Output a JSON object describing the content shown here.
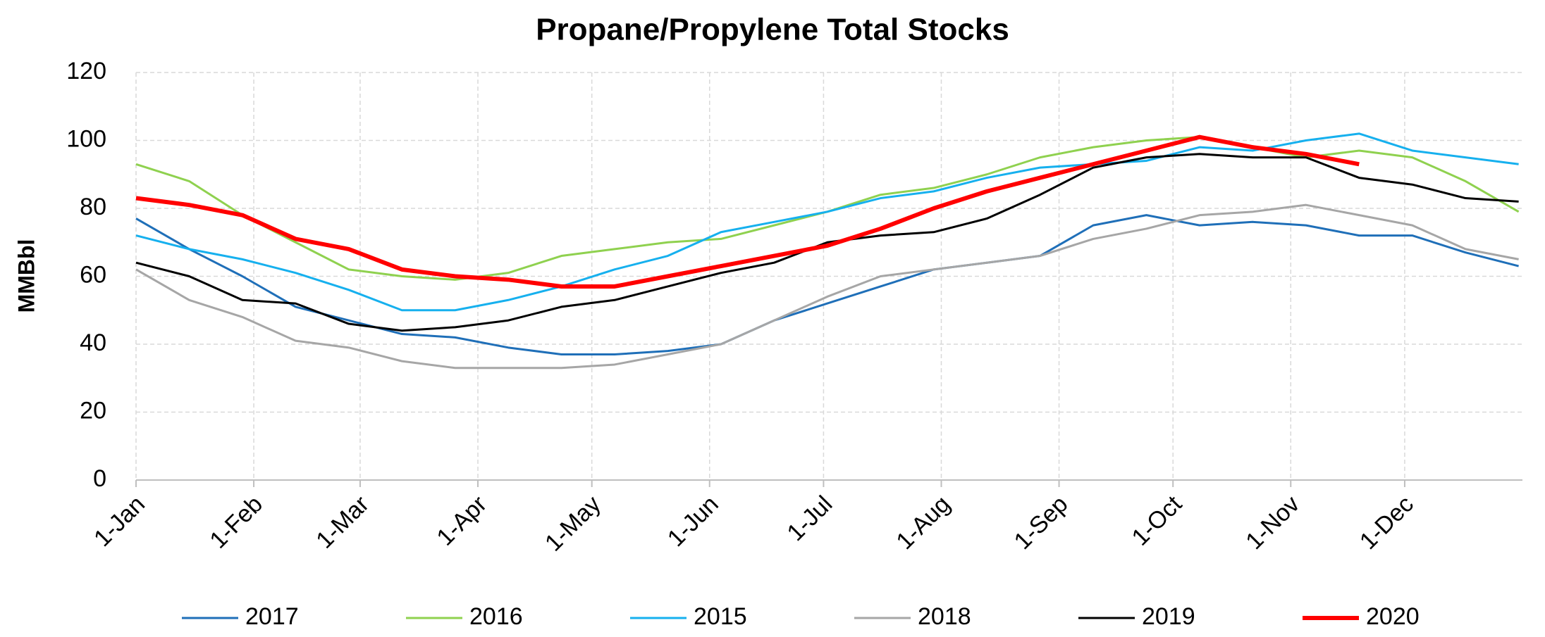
{
  "chart_data": {
    "type": "line",
    "title": "Propane/Propylene Total Stocks",
    "y_label": "MMBbl",
    "x": [
      0,
      14,
      28,
      42,
      56,
      70,
      84,
      98,
      112,
      126,
      140,
      154,
      168,
      182,
      196,
      210,
      224,
      238,
      252,
      266,
      280,
      294,
      308,
      322,
      336,
      350,
      364
    ],
    "xlim": [
      0,
      365
    ],
    "xticks": [
      {
        "value": 0,
        "label": "1-Jan"
      },
      {
        "value": 31,
        "label": "1-Feb"
      },
      {
        "value": 59,
        "label": "1-Mar"
      },
      {
        "value": 90,
        "label": "1-Apr"
      },
      {
        "value": 120,
        "label": "1-May"
      },
      {
        "value": 151,
        "label": "1-Jun"
      },
      {
        "value": 181,
        "label": "1-Jul"
      },
      {
        "value": 212,
        "label": "1-Aug"
      },
      {
        "value": 243,
        "label": "1-Sep"
      },
      {
        "value": 273,
        "label": "1-Oct"
      },
      {
        "value": 304,
        "label": "1-Nov"
      },
      {
        "value": 334,
        "label": "1-Dec"
      }
    ],
    "ylim": [
      0,
      120
    ],
    "yticks": [
      0,
      20,
      40,
      60,
      80,
      100,
      120
    ],
    "grid": true,
    "legend": "bottom",
    "series": [
      {
        "name": "2017",
        "color": "#1f6fb8",
        "width": 3,
        "values": [
          77,
          68,
          60,
          51,
          47,
          43,
          42,
          39,
          37,
          37,
          38,
          40,
          47,
          52,
          57,
          62,
          64,
          66,
          75,
          78,
          75,
          76,
          75,
          72,
          72,
          67,
          63
        ]
      },
      {
        "name": "2016",
        "color": "#8fd14f",
        "width": 3,
        "values": [
          93,
          88,
          78,
          70,
          62,
          60,
          59,
          61,
          66,
          68,
          70,
          71,
          75,
          79,
          84,
          86,
          90,
          95,
          98,
          100,
          101,
          98,
          95,
          97,
          95,
          88,
          79
        ]
      },
      {
        "name": "2015",
        "color": "#16b0ee",
        "width": 3,
        "values": [
          72,
          68,
          65,
          61,
          56,
          50,
          50,
          53,
          57,
          62,
          66,
          73,
          76,
          79,
          83,
          85,
          89,
          92,
          93,
          94,
          98,
          97,
          100,
          102,
          97,
          95,
          93
        ]
      },
      {
        "name": "2018",
        "color": "#a6a6a6",
        "width": 3,
        "values": [
          62,
          53,
          48,
          41,
          39,
          35,
          33,
          33,
          33,
          34,
          37,
          40,
          47,
          54,
          60,
          62,
          64,
          66,
          71,
          74,
          78,
          79,
          81,
          78,
          75,
          68,
          65
        ]
      },
      {
        "name": "2019",
        "color": "#000000",
        "width": 3,
        "values": [
          64,
          60,
          53,
          52,
          46,
          44,
          45,
          47,
          51,
          53,
          57,
          61,
          64,
          70,
          72,
          73,
          77,
          84,
          92,
          95,
          96,
          95,
          95,
          89,
          87,
          83,
          82
        ]
      },
      {
        "name": "2020",
        "color": "#ff0000",
        "width": 6,
        "values": [
          83,
          81,
          78,
          71,
          68,
          62,
          60,
          59,
          57,
          57,
          60,
          63,
          66,
          69,
          74,
          80,
          85,
          89,
          93,
          97,
          101,
          98,
          96,
          93,
          null,
          null,
          null
        ]
      }
    ]
  }
}
